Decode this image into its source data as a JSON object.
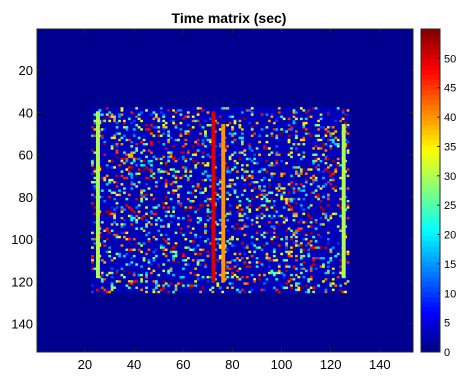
{
  "chart_data": {
    "type": "heatmap",
    "title": "Time matrix (sec)",
    "xlabel": "",
    "ylabel": "",
    "colormap": "jet",
    "xlim": [
      0.5,
      153.5
    ],
    "ylim": [
      0.5,
      153.5
    ],
    "y_direction": "reversed",
    "x_ticks": [
      20,
      40,
      60,
      80,
      100,
      120,
      140
    ],
    "y_ticks": [
      20,
      40,
      60,
      80,
      100,
      120,
      140
    ],
    "colorbar": {
      "clim": [
        0,
        55
      ],
      "ticks": [
        0,
        5,
        10,
        15,
        20,
        25,
        30,
        35,
        40,
        45,
        50
      ]
    },
    "background_value": 2,
    "active_region": {
      "x": [
        23,
        127
      ],
      "y": [
        38,
        125
      ]
    },
    "stripes": [
      {
        "x": 25,
        "y": [
          40,
          118
        ],
        "value": 30
      },
      {
        "x": 72,
        "y": [
          40,
          120
        ],
        "value": 50
      },
      {
        "x": 76,
        "y": [
          46,
          120
        ],
        "value": 40
      },
      {
        "x": 125,
        "y": [
          46,
          118
        ],
        "value": 30
      }
    ],
    "grid": false
  }
}
